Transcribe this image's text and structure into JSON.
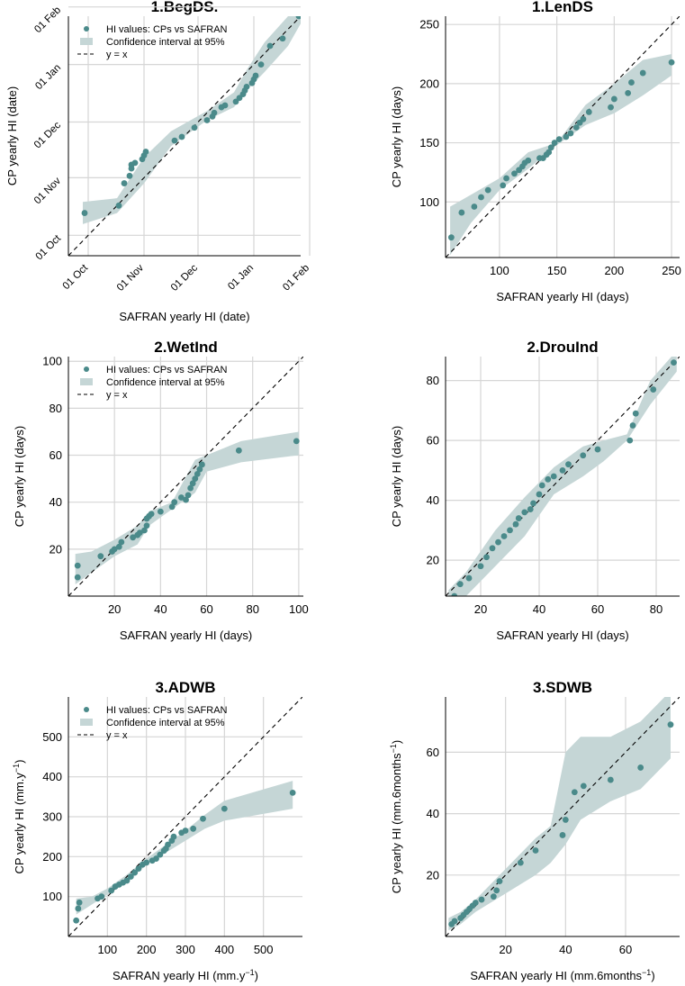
{
  "figure": {
    "colors": {
      "points": "#4a8a8a",
      "band": "#c5d6d6",
      "grid": "#d6d6d6",
      "identity": "#000000"
    },
    "legend": {
      "points_label": "HI values: CPs vs SAFRAN",
      "band_label": "Confidence interval at 95%",
      "line_label": "y = x"
    }
  },
  "chart_data": [
    {
      "id": "begds",
      "type": "scatter",
      "title": "1.BegDS.",
      "xlabel": "SAFRAN yearly HI (date)",
      "ylabel": "CP yearly HI (date)",
      "xlim": [
        263,
        392
      ],
      "ylim": [
        263,
        392
      ],
      "xticks": [
        {
          "v": 274,
          "t": "01 Oct"
        },
        {
          "v": 305,
          "t": "01 Nov"
        },
        {
          "v": 335,
          "t": "01 Dec"
        },
        {
          "v": 366,
          "t": "01 Jan"
        }
      ],
      "x_extra_ticks": [
        {
          "v": 397,
          "t": "01 Feb"
        }
      ],
      "yticks": [
        {
          "v": 274,
          "t": "01 Oct"
        },
        {
          "v": 305,
          "t": "01 Nov"
        },
        {
          "v": 335,
          "t": "01 Dec"
        },
        {
          "v": 366,
          "t": "01 Jan"
        },
        {
          "v": 397,
          "t": "01 Feb"
        }
      ],
      "xgrid": [
        274,
        305,
        335,
        366,
        397
      ],
      "ygrid": [
        274,
        305,
        335,
        366,
        397
      ],
      "legend": true,
      "x": [
        272,
        291,
        294,
        297,
        298,
        298,
        300,
        304,
        305,
        306,
        322,
        326,
        333,
        340,
        343,
        344,
        348,
        350,
        356,
        358,
        360,
        361,
        362,
        365,
        366,
        367,
        370,
        375,
        382,
        391
      ],
      "y": [
        286,
        290,
        302,
        306,
        310,
        312,
        313,
        315,
        317,
        319,
        325,
        327,
        332,
        336,
        338,
        340,
        343,
        344,
        346,
        348,
        350,
        352,
        354,
        356,
        358,
        360,
        366,
        376,
        380,
        392
      ],
      "band_x": [
        271,
        290,
        305,
        320,
        340,
        355,
        362,
        372,
        385,
        392
      ],
      "band_lo": [
        280,
        286,
        302,
        322,
        336,
        343,
        352,
        362,
        376,
        388
      ],
      "band_hi": [
        292,
        294,
        316,
        330,
        341,
        351,
        363,
        378,
        392,
        398
      ]
    },
    {
      "id": "lends",
      "type": "scatter",
      "title": "1.LenDS",
      "xlabel": "SAFRAN yearly HI (days)",
      "ylabel": "CP yearly HI (days)",
      "xlim": [
        53,
        257
      ],
      "ylim": [
        53,
        257
      ],
      "xticks": [
        {
          "v": 100,
          "t": "100"
        },
        {
          "v": 150,
          "t": "150"
        },
        {
          "v": 200,
          "t": "200"
        },
        {
          "v": 250,
          "t": "250"
        }
      ],
      "yticks": [
        {
          "v": 100,
          "t": "100"
        },
        {
          "v": 150,
          "t": "150"
        },
        {
          "v": 200,
          "t": "200"
        },
        {
          "v": 250,
          "t": "250"
        }
      ],
      "xgrid": [
        100,
        150,
        200,
        250
      ],
      "ygrid": [
        100,
        150,
        200,
        250
      ],
      "legend": false,
      "x": [
        58,
        67,
        78,
        84,
        90,
        103,
        106,
        113,
        117,
        120,
        122,
        125,
        135,
        138,
        141,
        143,
        145,
        148,
        152,
        158,
        162,
        167,
        170,
        173,
        178,
        197,
        200,
        212,
        215,
        225,
        250
      ],
      "y": [
        70,
        91,
        96,
        104,
        110,
        114,
        120,
        124,
        127,
        130,
        133,
        135,
        137,
        137,
        140,
        142,
        146,
        150,
        153,
        155,
        158,
        163,
        167,
        170,
        176,
        180,
        187,
        192,
        201,
        209,
        218
      ],
      "band_x": [
        57,
        75,
        100,
        125,
        150,
        175,
        200,
        225,
        250
      ],
      "band_lo": [
        55,
        82,
        110,
        128,
        148,
        165,
        175,
        190,
        207
      ],
      "band_hi": [
        96,
        106,
        120,
        142,
        150,
        182,
        200,
        220,
        225
      ]
    },
    {
      "id": "wetind",
      "type": "scatter",
      "title": "2.WetInd",
      "xlabel": "SAFRAN yearly HI (days)",
      "ylabel": "CP yearly HI (days)",
      "xlim": [
        0,
        102
      ],
      "ylim": [
        0,
        102
      ],
      "xticks": [
        {
          "v": 20,
          "t": "20"
        },
        {
          "v": 40,
          "t": "40"
        },
        {
          "v": 60,
          "t": "60"
        },
        {
          "v": 80,
          "t": "80"
        },
        {
          "v": 100,
          "t": "100"
        }
      ],
      "yticks": [
        {
          "v": 20,
          "t": "20"
        },
        {
          "v": 40,
          "t": "40"
        },
        {
          "v": 60,
          "t": "60"
        },
        {
          "v": 80,
          "t": "80"
        },
        {
          "v": 100,
          "t": "100"
        }
      ],
      "xgrid": [
        20,
        40,
        60,
        80,
        100
      ],
      "ygrid": [
        20,
        40,
        60,
        80,
        100
      ],
      "legend": true,
      "x": [
        4,
        4,
        14,
        19,
        20,
        22,
        23,
        28,
        30,
        31,
        33,
        34,
        34,
        35,
        36,
        40,
        45,
        46,
        49,
        51,
        52,
        53,
        54,
        55,
        56,
        57,
        58,
        74,
        99
      ],
      "y": [
        8,
        13,
        17,
        19,
        20,
        21,
        23,
        25,
        26,
        27,
        28,
        30,
        33,
        34,
        35,
        36,
        38,
        40,
        42,
        41,
        43,
        46,
        48,
        50,
        52,
        54,
        56,
        62,
        66
      ],
      "band_x": [
        3,
        10,
        20,
        30,
        35,
        45,
        55,
        60,
        75,
        100
      ],
      "band_lo": [
        5,
        10,
        17,
        22,
        30,
        37,
        44,
        53,
        57,
        60
      ],
      "band_hi": [
        18,
        19,
        24,
        30,
        36,
        40,
        58,
        60,
        66,
        70
      ]
    },
    {
      "id": "drouind",
      "type": "scatter",
      "title": "2.DrouInd",
      "xlabel": "SAFRAN yearly HI (days)",
      "ylabel": "CP yearly HI (days)",
      "xlim": [
        8,
        88
      ],
      "ylim": [
        8,
        88
      ],
      "xticks": [
        {
          "v": 20,
          "t": "20"
        },
        {
          "v": 40,
          "t": "40"
        },
        {
          "v": 60,
          "t": "60"
        },
        {
          "v": 80,
          "t": "80"
        }
      ],
      "yticks": [
        {
          "v": 20,
          "t": "20"
        },
        {
          "v": 40,
          "t": "40"
        },
        {
          "v": 60,
          "t": "60"
        },
        {
          "v": 80,
          "t": "80"
        }
      ],
      "xgrid": [
        20,
        40,
        60,
        80
      ],
      "ygrid": [
        20,
        40,
        60,
        80
      ],
      "legend": false,
      "x": [
        11,
        13,
        16,
        20,
        22,
        24,
        26,
        28,
        30,
        32,
        33,
        35,
        37,
        38,
        40,
        41,
        43,
        45,
        48,
        50,
        55,
        60,
        71,
        72,
        73,
        79,
        86
      ],
      "y": [
        8,
        12,
        14,
        18,
        21,
        24,
        26,
        28,
        30,
        32,
        34,
        36,
        37,
        39,
        42,
        45,
        47,
        48,
        50,
        52,
        55,
        57,
        60,
        65,
        69,
        77,
        86
      ],
      "band_x": [
        9,
        15,
        25,
        35,
        45,
        55,
        62,
        70,
        78,
        87
      ],
      "band_lo": [
        5,
        8,
        18,
        28,
        42,
        48,
        53,
        60,
        72,
        83
      ],
      "band_hi": [
        10,
        16,
        30,
        41,
        51,
        58,
        60,
        62,
        80,
        90
      ]
    },
    {
      "id": "adwb",
      "type": "scatter",
      "title": "3.ADWB",
      "xlabel": "SAFRAN yearly HI  (mm.y",
      "xlabel_sup": "−1",
      "xlabel_end": ")",
      "ylabel": "CP yearly HI  (mm.y",
      "ylabel_sup": "−1",
      "ylabel_end": ")",
      "xlim": [
        0,
        600
      ],
      "ylim": [
        0,
        600
      ],
      "xticks": [
        {
          "v": 100,
          "t": "100"
        },
        {
          "v": 200,
          "t": "200"
        },
        {
          "v": 300,
          "t": "300"
        },
        {
          "v": 400,
          "t": "400"
        },
        {
          "v": 500,
          "t": "500"
        }
      ],
      "yticks": [
        {
          "v": 100,
          "t": "100"
        },
        {
          "v": 200,
          "t": "200"
        },
        {
          "v": 300,
          "t": "300"
        },
        {
          "v": 400,
          "t": "400"
        },
        {
          "v": 500,
          "t": "500"
        }
      ],
      "xgrid": [
        100,
        200,
        300,
        400,
        500
      ],
      "ygrid": [
        100,
        200,
        300,
        400,
        500
      ],
      "legend": true,
      "x": [
        20,
        25,
        28,
        75,
        85,
        110,
        120,
        130,
        140,
        150,
        160,
        170,
        180,
        190,
        200,
        215,
        225,
        235,
        245,
        250,
        255,
        265,
        270,
        290,
        300,
        320,
        345,
        400,
        575
      ],
      "y": [
        40,
        70,
        85,
        95,
        100,
        115,
        125,
        130,
        135,
        140,
        150,
        160,
        170,
        180,
        185,
        190,
        195,
        205,
        215,
        220,
        230,
        240,
        250,
        260,
        265,
        270,
        295,
        320,
        360
      ],
      "band_x": [
        20,
        60,
        100,
        150,
        200,
        250,
        300,
        350,
        400,
        575
      ],
      "band_lo": [
        55,
        80,
        105,
        135,
        180,
        210,
        240,
        270,
        290,
        320
      ],
      "band_hi": [
        95,
        100,
        120,
        155,
        195,
        230,
        265,
        305,
        340,
        390
      ]
    },
    {
      "id": "sdwb",
      "type": "scatter",
      "title": "3.SDWB",
      "xlabel": "SAFRAN yearly HI  (mm.6months",
      "xlabel_sup": "−1",
      "xlabel_end": ")",
      "ylabel": "CP yearly HI  (mm.6months",
      "ylabel_sup": "−1",
      "ylabel_end": ")",
      "xlim": [
        0,
        78
      ],
      "ylim": [
        0,
        78
      ],
      "xticks": [
        {
          "v": 20,
          "t": "20"
        },
        {
          "v": 40,
          "t": "40"
        },
        {
          "v": 60,
          "t": "60"
        }
      ],
      "yticks": [
        {
          "v": 20,
          "t": "20"
        },
        {
          "v": 40,
          "t": "40"
        },
        {
          "v": 60,
          "t": "60"
        }
      ],
      "xgrid": [
        20,
        40,
        60
      ],
      "ygrid": [
        20,
        40,
        60
      ],
      "legend": false,
      "x": [
        2,
        3,
        5,
        6,
        7,
        8,
        9,
        10,
        12,
        16,
        17,
        18,
        25,
        30,
        39,
        40,
        43,
        46,
        55,
        65,
        75
      ],
      "y": [
        4,
        5,
        6,
        7,
        8,
        9,
        10,
        11,
        12,
        13,
        15,
        18,
        24,
        28,
        33,
        38,
        47,
        49,
        51,
        55,
        69
      ],
      "band_x": [
        1,
        5,
        10,
        20,
        30,
        35,
        40,
        45,
        55,
        65,
        75
      ],
      "band_lo": [
        2,
        4,
        8,
        14,
        20,
        24,
        30,
        38,
        44,
        48,
        58
      ],
      "band_hi": [
        6,
        8,
        12,
        22,
        32,
        36,
        60,
        65,
        65,
        70,
        80
      ]
    }
  ]
}
